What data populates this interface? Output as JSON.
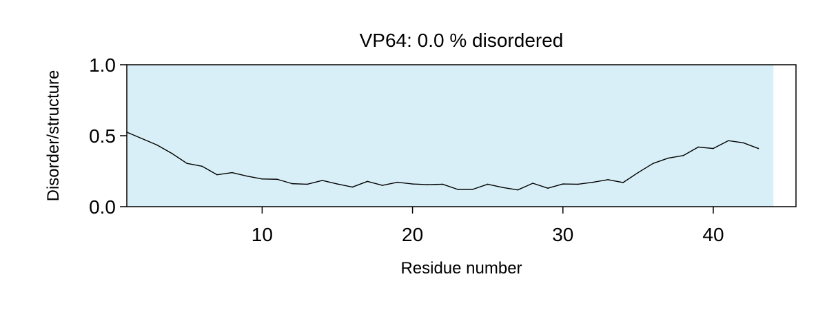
{
  "chart_data": {
    "type": "line",
    "title": "VP64: 0.0 % disordered",
    "xlabel": "Residue number",
    "ylabel": "Disorder/structure",
    "xlim": [
      1,
      45.5
    ],
    "ylim": [
      0,
      1
    ],
    "shaded_region": {
      "x_start": 1,
      "x_end": 44,
      "color": "#d9eff7"
    },
    "line_color": "#000000",
    "xticks": [
      {
        "value": 10,
        "label": "10"
      },
      {
        "value": 20,
        "label": "20"
      },
      {
        "value": 30,
        "label": "30"
      },
      {
        "value": 40,
        "label": "40"
      }
    ],
    "yticks": [
      {
        "value": 0.0,
        "label": "0.0"
      },
      {
        "value": 0.5,
        "label": "0.5"
      },
      {
        "value": 1.0,
        "label": "1.0"
      }
    ],
    "series": [
      {
        "x": [
          1,
          2,
          3,
          4,
          5,
          6,
          7,
          8,
          9,
          10,
          11,
          12,
          13,
          14,
          15,
          16,
          17,
          18,
          19,
          20,
          21,
          22,
          23,
          24,
          25,
          26,
          27,
          28,
          29,
          30,
          31,
          32,
          33,
          34,
          35,
          36,
          37,
          38,
          39,
          40,
          41,
          42,
          43
        ],
        "values": [
          0.525,
          0.48,
          0.435,
          0.375,
          0.305,
          0.285,
          0.225,
          0.24,
          0.215,
          0.195,
          0.193,
          0.162,
          0.158,
          0.185,
          0.16,
          0.138,
          0.178,
          0.15,
          0.172,
          0.16,
          0.155,
          0.158,
          0.122,
          0.122,
          0.158,
          0.135,
          0.118,
          0.165,
          0.13,
          0.16,
          0.158,
          0.172,
          0.19,
          0.17,
          0.24,
          0.305,
          0.342,
          0.36,
          0.42,
          0.41,
          0.465,
          0.45,
          0.41
        ]
      }
    ]
  }
}
